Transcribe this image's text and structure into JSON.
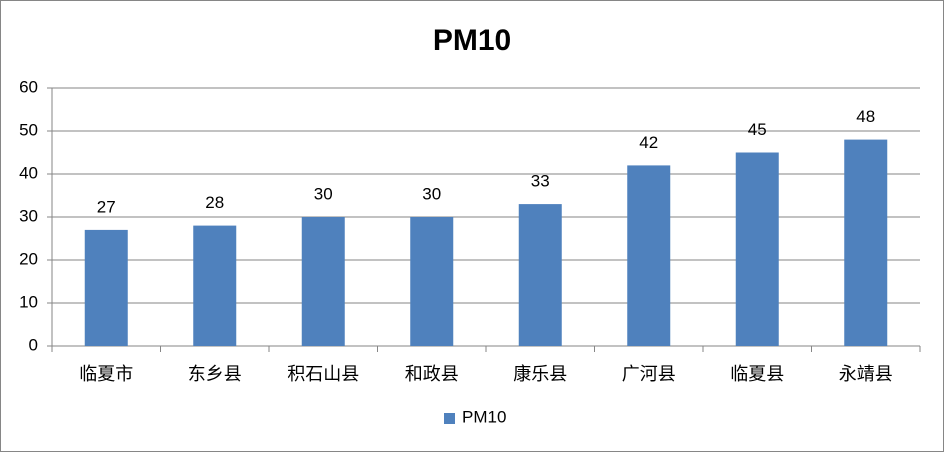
{
  "chart_data": {
    "type": "bar",
    "title": "PM10",
    "categories": [
      "临夏市",
      "东乡县",
      "积石山县",
      "和政县",
      "康乐县",
      "广河县",
      "临夏县",
      "永靖县"
    ],
    "series": [
      {
        "name": "PM10",
        "color": "#4f81bd",
        "values": [
          27,
          28,
          30,
          30,
          33,
          42,
          45,
          48
        ]
      }
    ],
    "ylim": [
      0,
      60
    ],
    "yticks": [
      0,
      10,
      20,
      30,
      40,
      50,
      60
    ],
    "grid": true,
    "data_labels": true,
    "legend": "bottom"
  }
}
